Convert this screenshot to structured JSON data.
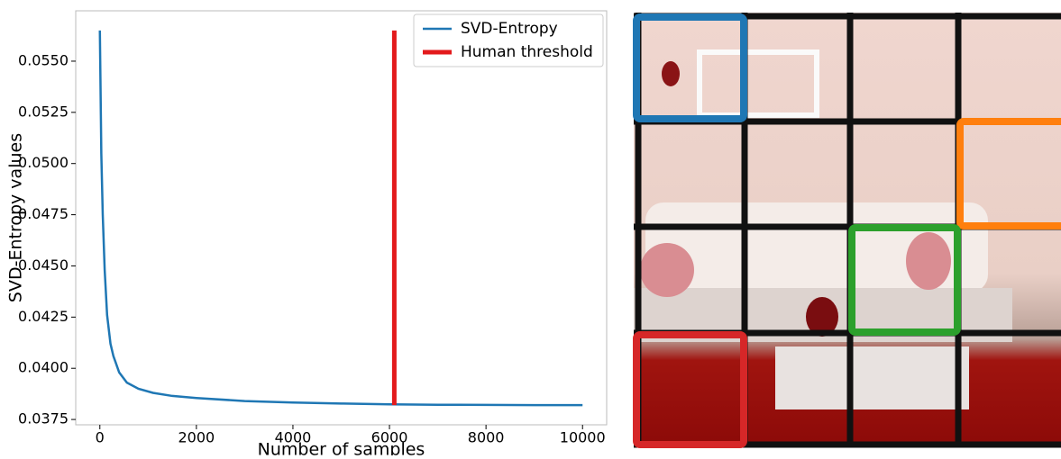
{
  "chart_data": {
    "type": "line",
    "xlabel": "Number of samples",
    "ylabel": "SVD-Entropy values",
    "xlim": [
      -500,
      10500
    ],
    "ylim": [
      0.03724,
      0.05746
    ],
    "xticks": [
      0,
      2000,
      4000,
      6000,
      8000,
      10000
    ],
    "yticks": [
      0.0375,
      {
        "value": 0.04,
        "label": "0.0400"
      },
      0.0425,
      {
        "value": 0.045,
        "label": "0.0450"
      },
      0.0475,
      {
        "value": 0.05,
        "label": "0.0500"
      },
      0.0525,
      {
        "value": 0.055,
        "label": "0.0550"
      }
    ],
    "legend": "upper right",
    "series": [
      {
        "name": "SVD-Entropy",
        "color": "#1f77b4",
        "width": 2.5,
        "x": [
          0,
          30,
          60,
          100,
          150,
          220,
          280,
          400,
          560,
          800,
          1100,
          1500,
          2000,
          3000,
          4000,
          5000,
          6000,
          7000,
          8000,
          9000,
          10000
        ],
        "values": [
          0.0565,
          0.0505,
          0.0475,
          0.0448,
          0.0426,
          0.0412,
          0.0406,
          0.0398,
          0.0393,
          0.039,
          0.0388,
          0.03865,
          0.03855,
          0.0384,
          0.03833,
          0.03828,
          0.03824,
          0.03822,
          0.03821,
          0.0382,
          0.0382
        ]
      },
      {
        "name": "Human threshold",
        "color": "#e31a1c",
        "width": 5,
        "x": [
          6100,
          6100
        ],
        "values": [
          0.0382,
          0.0565
        ]
      }
    ]
  }
}
